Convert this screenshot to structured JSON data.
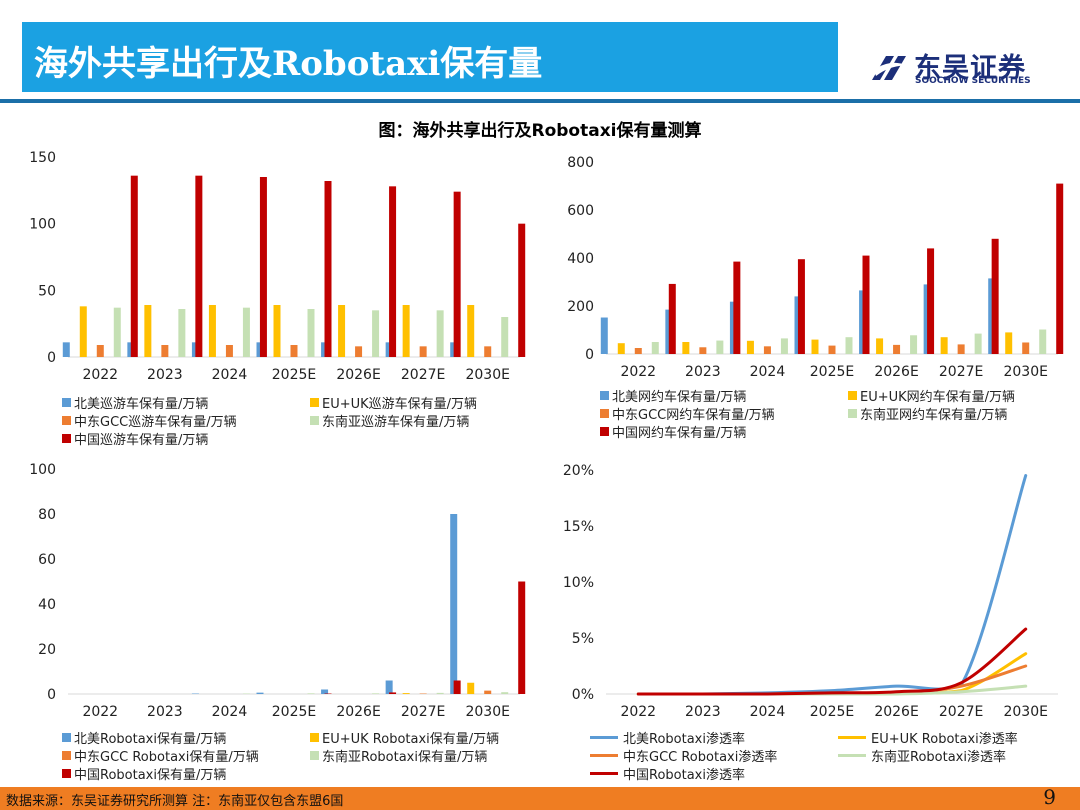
{
  "header": {
    "title": "海外共享出行及Robotaxi保有量"
  },
  "logo": {
    "name_cn": "东吴证券",
    "name_en": "SOOCHOW SECURITIES"
  },
  "figure_title": "图：海外共享出行及Robotaxi保有量测算",
  "colors": {
    "title_band": "#1ba1e2",
    "rule": "#1b6fa8",
    "footer": "#ef7d22",
    "blue": "#5b9bd5",
    "yellow": "#ffc000",
    "orange": "#ed7d31",
    "lightgreen": "#c5e0b4",
    "red": "#c00000"
  },
  "chart_data": [
    {
      "id": "cruise",
      "type": "bar",
      "categories": [
        "2022",
        "2023",
        "2024",
        "2025E",
        "2026E",
        "2027E",
        "2030E"
      ],
      "ylim": [
        0,
        150
      ],
      "yticks": [
        "0",
        "50",
        "100",
        "150"
      ],
      "series": [
        {
          "name": "北美巡游车保有量/万辆",
          "color": "#5b9bd5",
          "values": [
            11,
            11,
            11,
            11,
            11,
            11,
            11
          ]
        },
        {
          "name": "EU+UK巡游车保有量/万辆",
          "color": "#ffc000",
          "values": [
            38,
            39,
            39,
            39,
            39,
            39,
            39
          ]
        },
        {
          "name": "中东GCC巡游车保有量/万辆",
          "color": "#ed7d31",
          "values": [
            9,
            9,
            9,
            9,
            8,
            8,
            8
          ]
        },
        {
          "name": "东南亚巡游车保有量/万辆",
          "color": "#c5e0b4",
          "values": [
            37,
            36,
            37,
            36,
            35,
            35,
            30
          ]
        },
        {
          "name": "中国巡游车保有量/万辆",
          "color": "#c00000",
          "values": [
            136,
            136,
            135,
            132,
            128,
            124,
            100
          ]
        }
      ]
    },
    {
      "id": "ridehail",
      "type": "bar",
      "categories": [
        "2022",
        "2023",
        "2024",
        "2025E",
        "2026E",
        "2027E",
        "2030E"
      ],
      "ylim": [
        0,
        800
      ],
      "yticks": [
        "0",
        "200",
        "400",
        "600",
        "800"
      ],
      "series": [
        {
          "name": "北美网约车保有量/万辆",
          "color": "#5b9bd5",
          "values": [
            152,
            185,
            218,
            240,
            265,
            290,
            315
          ]
        },
        {
          "name": "EU+UK网约车保有量/万辆",
          "color": "#ffc000",
          "values": [
            45,
            50,
            55,
            60,
            65,
            70,
            90
          ]
        },
        {
          "name": "中东GCC网约车保有量/万辆",
          "color": "#ed7d31",
          "values": [
            25,
            28,
            32,
            35,
            38,
            40,
            48
          ]
        },
        {
          "name": "东南亚网约车保有量/万辆",
          "color": "#c5e0b4",
          "values": [
            50,
            56,
            65,
            70,
            78,
            85,
            102
          ]
        },
        {
          "name": "中国网约车保有量/万辆",
          "color": "#c00000",
          "values": [
            292,
            385,
            395,
            410,
            440,
            480,
            710
          ]
        }
      ]
    },
    {
      "id": "robotaxi",
      "type": "bar",
      "categories": [
        "2022",
        "2023",
        "2024",
        "2025E",
        "2026E",
        "2027E",
        "2030E"
      ],
      "ylim": [
        0,
        100
      ],
      "yticks": [
        "0",
        "20",
        "40",
        "60",
        "80",
        "100"
      ],
      "series": [
        {
          "name": "北美Robotaxi保有量/万辆",
          "color": "#5b9bd5",
          "values": [
            0,
            0,
            0.2,
            0.6,
            2,
            6,
            80
          ]
        },
        {
          "name": "EU+UK Robotaxi保有量/万辆",
          "color": "#ffc000",
          "values": [
            0,
            0,
            0,
            0,
            0,
            0.4,
            5
          ]
        },
        {
          "name": "中东GCC Robotaxi保有量/万辆",
          "color": "#ed7d31",
          "values": [
            0,
            0,
            0,
            0,
            0,
            0.2,
            1.5
          ]
        },
        {
          "name": "东南亚Robotaxi保有量/万辆",
          "color": "#c5e0b4",
          "values": [
            0,
            0,
            0.2,
            0.3,
            0.3,
            0.5,
            0.8
          ]
        },
        {
          "name": "中国Robotaxi保有量/万辆",
          "color": "#c00000",
          "values": [
            0,
            0,
            0,
            0.2,
            0.7,
            6,
            50
          ]
        }
      ]
    },
    {
      "id": "penetration",
      "type": "line",
      "categories": [
        "2022",
        "2023",
        "2024",
        "2025E",
        "2026E",
        "2027E",
        "2030E"
      ],
      "ylim": [
        0,
        20
      ],
      "yticks": [
        "0%",
        "5%",
        "10%",
        "15%",
        "20%"
      ],
      "series": [
        {
          "name": "北美Robotaxi渗透率",
          "color": "#5b9bd5",
          "values": [
            0,
            0,
            0.1,
            0.3,
            0.7,
            0.8,
            19.5
          ]
        },
        {
          "name": "EU+UK Robotaxi渗透率",
          "color": "#ffc000",
          "values": [
            0,
            0,
            0,
            0,
            0.1,
            0.3,
            3.6
          ]
        },
        {
          "name": "中东GCC Robotaxi渗透率",
          "color": "#ed7d31",
          "values": [
            0,
            0,
            0,
            0.1,
            0.1,
            0.7,
            2.5
          ]
        },
        {
          "name": "东南亚Robotaxi渗透率",
          "color": "#c5e0b4",
          "values": [
            0,
            0,
            0,
            0,
            0,
            0.2,
            0.7
          ]
        },
        {
          "name": "中国Robotaxi渗透率",
          "color": "#c00000",
          "values": [
            0,
            0,
            0,
            0.1,
            0.2,
            1.0,
            5.8
          ]
        }
      ]
    }
  ],
  "footer": {
    "source": "数据来源：东吴证券研究所测算    注：东南亚仅包含东盟6国",
    "page": "9"
  }
}
